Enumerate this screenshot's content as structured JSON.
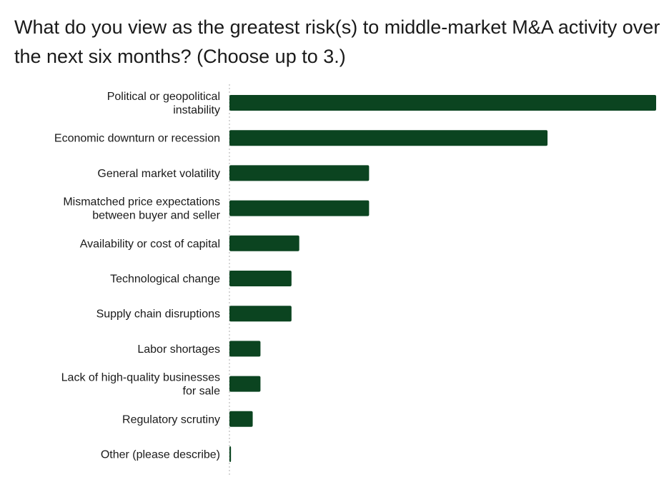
{
  "chart_data": {
    "type": "bar",
    "orientation": "horizontal",
    "title": "What do you view as the greatest risk(s) to middle-market M&A activity over the next six months? (Choose up to 3.)",
    "categories": [
      "Political or geopolitical instability",
      "Economic downturn or recession",
      "General market volatility",
      "Mismatched price expectations between buyer and seller",
      "Availability or cost of capital",
      "Technological change",
      "Supply chain disruptions",
      "Labor shortages",
      "Lack of high-quality businesses for sale",
      "Regulatory scrutiny",
      "Other (please describe)"
    ],
    "values": [
      55,
      41,
      18,
      18,
      9,
      8,
      8,
      4,
      4,
      3,
      0.2
    ],
    "xlim": [
      0,
      55
    ],
    "grid": false,
    "color": "#0b4420",
    "zero_line_style": "dotted"
  }
}
